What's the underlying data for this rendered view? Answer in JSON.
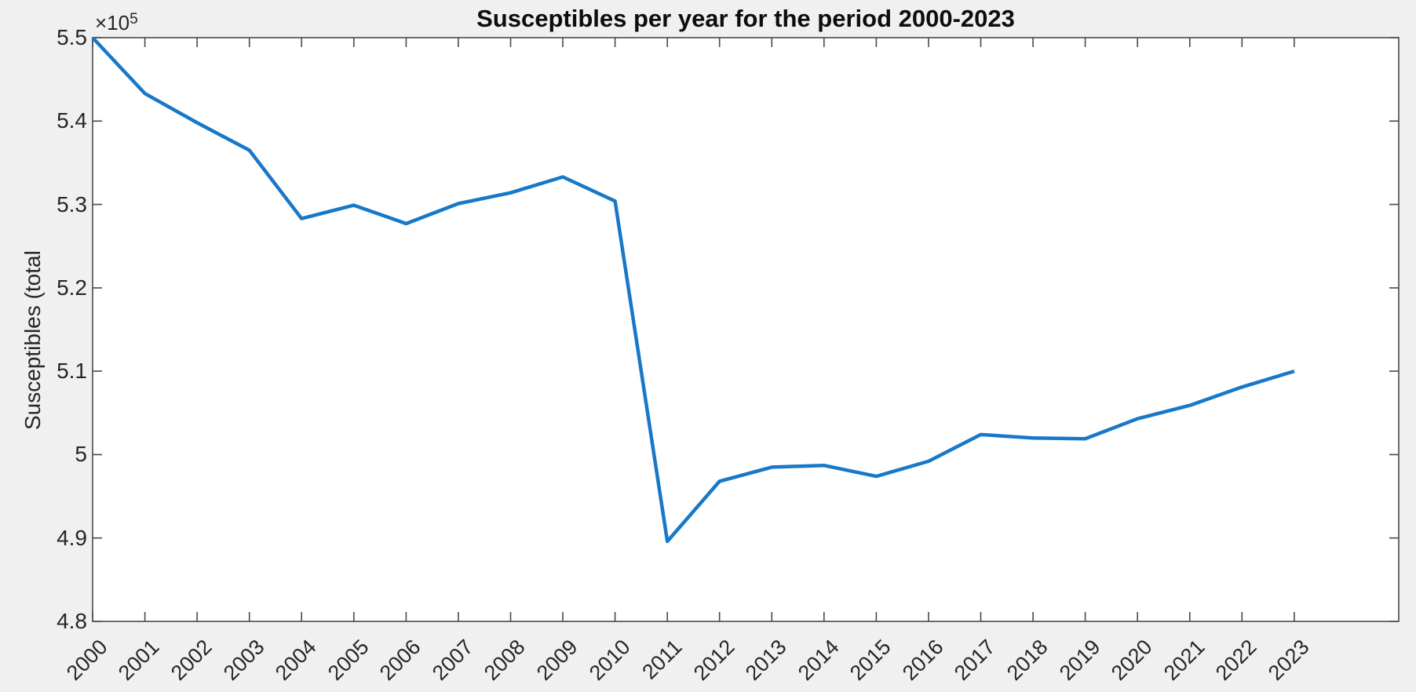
{
  "figure": {
    "background_color": "#f0f0f0",
    "plot_background_color": "#ffffff",
    "axis_color": "#4a4a4a",
    "text_color": "#262626",
    "title_color": "#0d0d0d"
  },
  "chart_data": {
    "type": "line",
    "title": "Susceptibles per year for the period 2000-2023",
    "xlabel": "",
    "ylabel": "Susceptibles (total",
    "y_axis_multiplier_base": "×10",
    "y_axis_multiplier_exponent": "5",
    "legend": "none",
    "grid": false,
    "xlim": [
      2000,
      2025
    ],
    "ylim": [
      480000,
      550000
    ],
    "x": [
      2000,
      2001,
      2002,
      2003,
      2004,
      2005,
      2006,
      2007,
      2008,
      2009,
      2010,
      2011,
      2012,
      2013,
      2014,
      2015,
      2016,
      2017,
      2018,
      2019,
      2020,
      2021,
      2022,
      2023
    ],
    "series": [
      {
        "name": "Susceptibles",
        "color": "#1878c8",
        "line_width": 4.5,
        "values": [
          550000,
          543300,
          539800,
          536500,
          528300,
          529900,
          527700,
          530100,
          531400,
          533300,
          530400,
          489600,
          496800,
          498500,
          498700,
          497400,
          499200,
          502400,
          502000,
          501900,
          504300,
          505900,
          508100,
          510000
        ]
      }
    ],
    "xtick_labels": [
      "2000",
      "2001",
      "2002",
      "2003",
      "2004",
      "2005",
      "2006",
      "2007",
      "2008",
      "2009",
      "2010",
      "2011",
      "2012",
      "2013",
      "2014",
      "2015",
      "2016",
      "2017",
      "2018",
      "2019",
      "2020",
      "2021",
      "2022",
      "2023"
    ],
    "xtick_angle": 45,
    "ytick_values": [
      480000,
      490000,
      500000,
      510000,
      520000,
      530000,
      540000,
      550000
    ],
    "ytick_labels": [
      "4.8",
      "4.9",
      "5",
      "5.1",
      "5.2",
      "5.3",
      "5.4",
      "5.5"
    ]
  }
}
